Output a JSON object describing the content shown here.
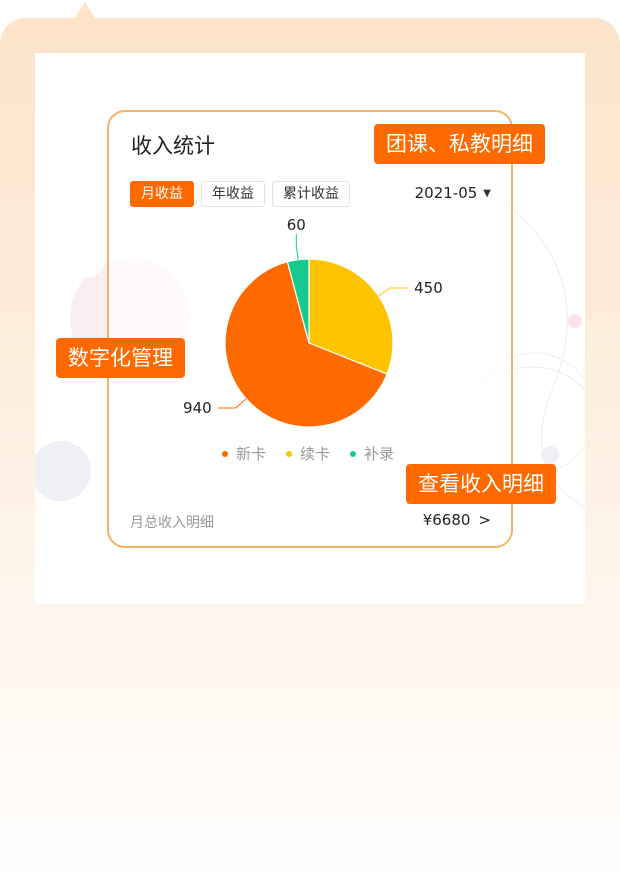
{
  "card": {
    "title": "收入统计",
    "tabs": [
      {
        "label": "月收益",
        "active": true
      },
      {
        "label": "年收益",
        "active": false
      },
      {
        "label": "累计收益",
        "active": false
      }
    ],
    "date": "2021-05",
    "date_caret": "▼",
    "footer_label": "月总收入明细",
    "footer_value": "¥6680",
    "footer_arrow": ">"
  },
  "tags": {
    "top_right": "团课、私教明细",
    "left": "数字化管理",
    "bottom_right": "查看收入明细"
  },
  "colors": {
    "accent": "#ff6a00",
    "card_border": "#f6b267",
    "new_card": "#ff6a00",
    "renew_card": "#ffc400",
    "supplement": "#17c98e"
  },
  "chart_data": {
    "type": "pie",
    "title": "",
    "slices": [
      {
        "name": "续卡",
        "value": 450,
        "color": "#ffc400"
      },
      {
        "name": "新卡",
        "value": 940,
        "color": "#ff6a00"
      },
      {
        "name": "补录",
        "value": 60,
        "color": "#17c98e"
      }
    ],
    "legend": [
      {
        "name": "新卡",
        "color": "#ff6a00"
      },
      {
        "name": "续卡",
        "color": "#ffc400"
      },
      {
        "name": "补录",
        "color": "#17c98e"
      }
    ],
    "legend_position": "bottom"
  }
}
